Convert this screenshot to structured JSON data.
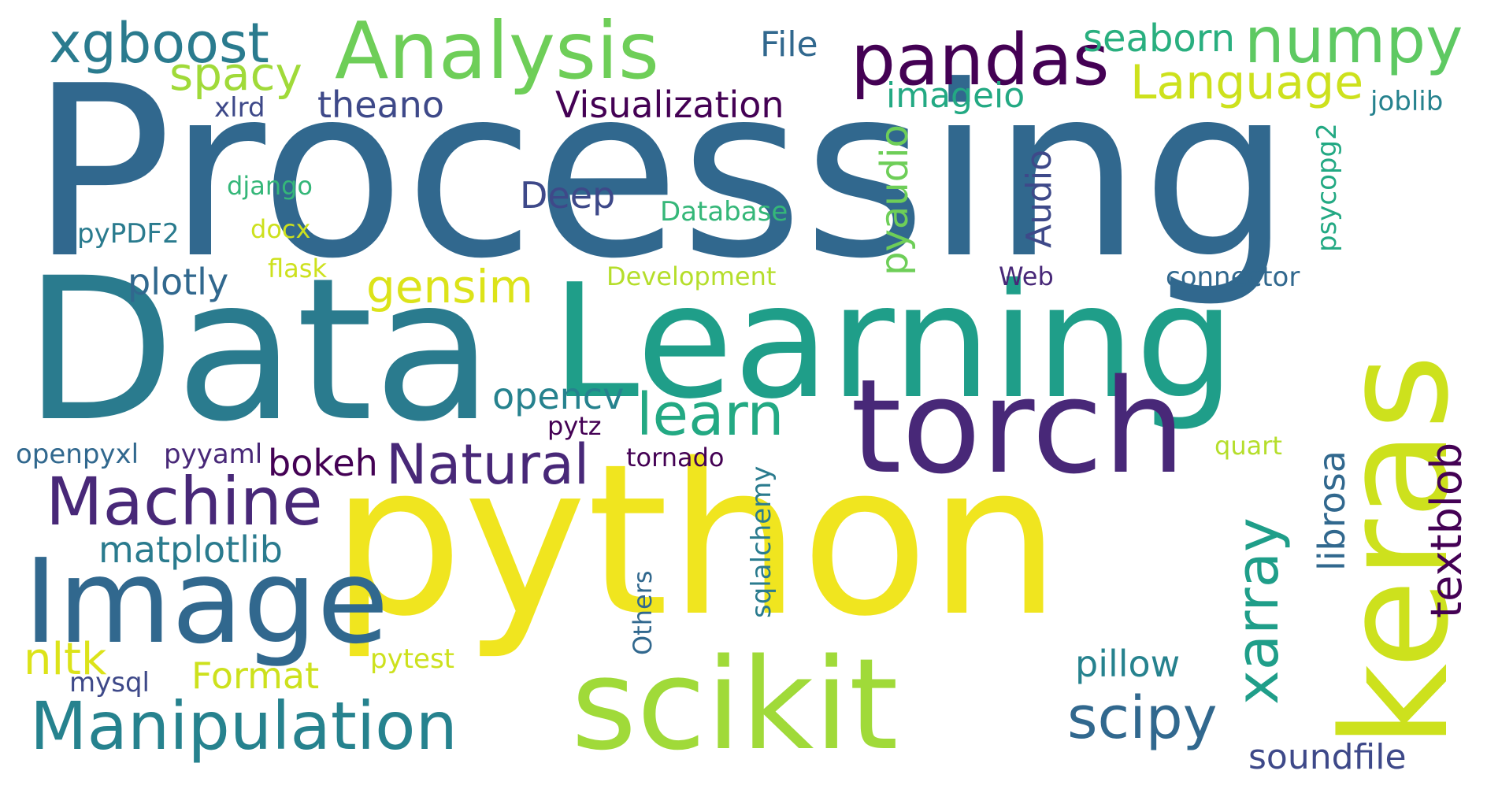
{
  "palette": {
    "background": "#ffffff",
    "darkpurple": "#440154",
    "purple": "#482878",
    "indigo": "#3e4989",
    "slate": "#31688e",
    "teal": "#26828e",
    "green": "#1f9e89",
    "lightgreen": "#35b779",
    "lime": "#6ece58",
    "yellowgreen": "#b5de2b",
    "yellow": "#f0e51f"
  },
  "words": {
    "processing": "Processing",
    "data": "Data",
    "python": "python",
    "learning": "Learning",
    "torch": "torch",
    "keras": "keras",
    "scikit": "scikit",
    "image": "Image",
    "analysis": "Analysis",
    "pandas": "pandas",
    "numpy": "numpy",
    "xgboost": "xgboost",
    "machine": "Machine",
    "manipulation": "Manipulation",
    "natural": "Natural",
    "learn": "learn",
    "scipy": "scipy",
    "xarray": "xarray",
    "textblob": "textblob",
    "language": "Language",
    "spacy": "spacy",
    "gensim": "gensim",
    "visualization": "Visualization",
    "seaborn": "seaborn",
    "file": "File",
    "theano": "theano",
    "xlrd": "xlrd",
    "imageio": "imageio",
    "joblib": "joblib",
    "deep": "Deep",
    "django": "django",
    "database": "Database",
    "pypdf2": "pyPDF2",
    "docx": "docx",
    "audio": "Audio",
    "pyaudio": "pyaudio",
    "psycopg2": "psycopg2",
    "plotly": "plotly",
    "flask": "flask",
    "development": "Development",
    "web": "Web",
    "connector": "connector",
    "opencv": "opencv",
    "pytz": "pytz",
    "openpyxl": "openpyxl",
    "pyyaml": "pyyaml",
    "bokeh": "bokeh",
    "tornado": "tornado",
    "librosa": "librosa",
    "quart": "quart",
    "matplotlib": "matplotlib",
    "sqlalchemy": "sqlalchemy",
    "nltk": "nltk",
    "others": "Others",
    "format": "Format",
    "pytest": "pytest",
    "pillow": "pillow",
    "mysql": "mysql",
    "soundfile": "soundfile"
  }
}
